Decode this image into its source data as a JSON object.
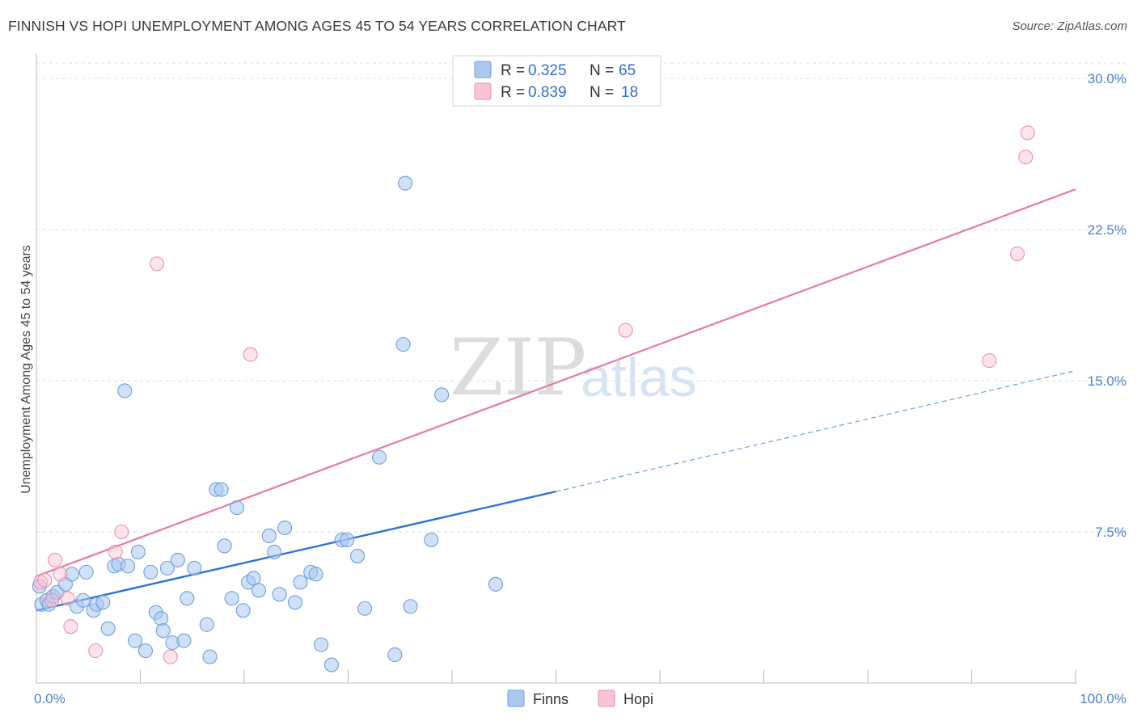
{
  "header": {
    "title": "FINNISH VS HOPI UNEMPLOYMENT AMONG AGES 45 TO 54 YEARS CORRELATION CHART",
    "source": "Source: ZipAtlas.com"
  },
  "watermark": {
    "zip": "ZIP",
    "atlas": "atlas"
  },
  "legend": {
    "rows": [
      {
        "r_label": "R =",
        "r_value": "0.325",
        "n_label": "N =",
        "n_value": "65",
        "color": "#a9c8f0",
        "stroke": "#6f9fe0"
      },
      {
        "r_label": "R =",
        "r_value": "0.839",
        "n_label": "N =",
        "n_value": "18",
        "color": "#f9c3d3",
        "stroke": "#ee90ad"
      }
    ]
  },
  "bottom_legend": [
    {
      "label": "Finns",
      "color": "#a9c8f0",
      "stroke": "#6f9fe0"
    },
    {
      "label": "Hopi",
      "color": "#f9c3d3",
      "stroke": "#ee90ad"
    }
  ],
  "chart_data": {
    "type": "scatter",
    "title": "FINNISH VS HOPI UNEMPLOYMENT AMONG AGES 45 TO 54 YEARS CORRELATION CHART",
    "xlabel": "",
    "ylabel": "Unemployment Among Ages 45 to 54 years",
    "xlim": [
      0,
      100
    ],
    "ylim": [
      0,
      30
    ],
    "x_tick_labels": [
      "0.0%",
      "100.0%"
    ],
    "y_ticks": [
      7.5,
      15.0,
      22.5,
      30.0
    ],
    "y_tick_labels": [
      "7.5%",
      "15.0%",
      "22.5%",
      "30.0%"
    ],
    "grid": true,
    "legend_position": "top-center",
    "series": [
      {
        "name": "Finns",
        "color": "#5b93e0",
        "points": [
          [
            0.3,
            4.8
          ],
          [
            0.5,
            3.9
          ],
          [
            1.0,
            4.1
          ],
          [
            1.2,
            3.9
          ],
          [
            1.6,
            4.3
          ],
          [
            2.0,
            4.5
          ],
          [
            2.8,
            4.9
          ],
          [
            3.4,
            5.4
          ],
          [
            3.9,
            3.8
          ],
          [
            4.5,
            4.1
          ],
          [
            4.8,
            5.5
          ],
          [
            5.5,
            3.6
          ],
          [
            5.8,
            3.9
          ],
          [
            6.4,
            4.0
          ],
          [
            6.9,
            2.7
          ],
          [
            7.5,
            5.8
          ],
          [
            7.9,
            5.9
          ],
          [
            8.5,
            14.5
          ],
          [
            8.8,
            5.8
          ],
          [
            9.5,
            2.1
          ],
          [
            9.8,
            6.5
          ],
          [
            10.5,
            1.6
          ],
          [
            11.0,
            5.5
          ],
          [
            11.5,
            3.5
          ],
          [
            12.0,
            3.2
          ],
          [
            12.2,
            2.6
          ],
          [
            12.6,
            5.7
          ],
          [
            13.1,
            2.0
          ],
          [
            13.6,
            6.1
          ],
          [
            14.2,
            2.1
          ],
          [
            14.5,
            4.2
          ],
          [
            15.2,
            5.7
          ],
          [
            16.4,
            2.9
          ],
          [
            16.7,
            1.3
          ],
          [
            17.3,
            9.6
          ],
          [
            17.8,
            9.6
          ],
          [
            18.1,
            6.8
          ],
          [
            18.8,
            4.2
          ],
          [
            19.3,
            8.7
          ],
          [
            19.9,
            3.6
          ],
          [
            20.4,
            5.0
          ],
          [
            20.9,
            5.2
          ],
          [
            21.4,
            4.6
          ],
          [
            22.4,
            7.3
          ],
          [
            22.9,
            6.5
          ],
          [
            23.4,
            4.4
          ],
          [
            23.9,
            7.7
          ],
          [
            24.9,
            4.0
          ],
          [
            25.4,
            5.0
          ],
          [
            26.4,
            5.5
          ],
          [
            26.9,
            5.4
          ],
          [
            27.4,
            1.9
          ],
          [
            28.4,
            0.9
          ],
          [
            29.4,
            7.1
          ],
          [
            29.9,
            7.1
          ],
          [
            30.9,
            6.3
          ],
          [
            31.6,
            3.7
          ],
          [
            33.0,
            11.2
          ],
          [
            34.5,
            1.4
          ],
          [
            35.3,
            16.8
          ],
          [
            35.5,
            24.8
          ],
          [
            36.0,
            3.8
          ],
          [
            38.0,
            7.1
          ],
          [
            39.0,
            14.3
          ],
          [
            44.2,
            4.9
          ]
        ],
        "trend": {
          "x": [
            0,
            50
          ],
          "y": [
            3.6,
            9.5
          ],
          "dashed_extension": {
            "x": [
              50,
              100
            ],
            "y": [
              9.5,
              15.5
            ]
          }
        }
      },
      {
        "name": "Hopi",
        "color": "#e8789e",
        "points": [
          [
            0.4,
            5.0
          ],
          [
            0.8,
            5.1
          ],
          [
            1.5,
            4.1
          ],
          [
            1.8,
            6.1
          ],
          [
            2.3,
            5.4
          ],
          [
            3.0,
            4.2
          ],
          [
            3.3,
            2.8
          ],
          [
            5.7,
            1.6
          ],
          [
            7.6,
            6.5
          ],
          [
            8.2,
            7.5
          ],
          [
            11.6,
            20.8
          ],
          [
            12.9,
            1.3
          ],
          [
            20.6,
            16.3
          ],
          [
            56.7,
            17.5
          ],
          [
            91.7,
            16.0
          ],
          [
            94.4,
            21.3
          ],
          [
            95.2,
            26.1
          ],
          [
            95.4,
            27.3
          ]
        ],
        "trend": {
          "x": [
            0,
            100
          ],
          "y": [
            5.3,
            24.5
          ]
        }
      }
    ]
  }
}
